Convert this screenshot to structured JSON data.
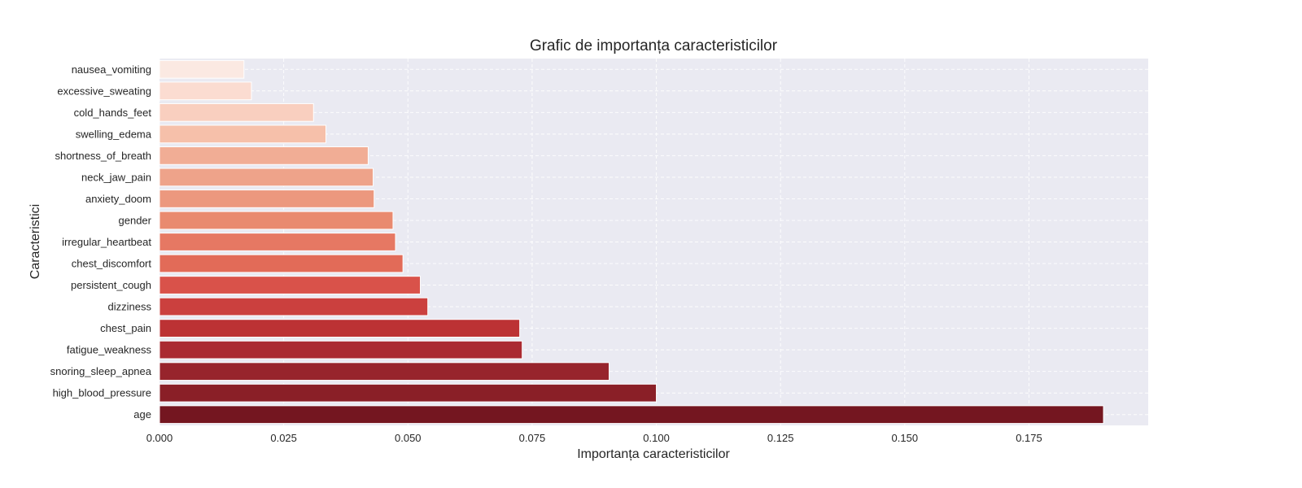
{
  "chart_data": {
    "type": "bar",
    "orientation": "horizontal",
    "title": "Grafic de importanța caracteristicilor",
    "xlabel": "Importanța caracteristicilor",
    "ylabel": "Caracteristici",
    "xlim": [
      0,
      0.199
    ],
    "xticks": [
      "0.000",
      "0.025",
      "0.050",
      "0.075",
      "0.100",
      "0.125",
      "0.150",
      "0.175"
    ],
    "grid": true,
    "colormap": "Reds",
    "categories": [
      "nausea_vomiting",
      "excessive_sweating",
      "cold_hands_feet",
      "swelling_edema",
      "shortness_of_breath",
      "neck_jaw_pain",
      "anxiety_doom",
      "gender",
      "irregular_heartbeat",
      "chest_discomfort",
      "persistent_cough",
      "dizziness",
      "chest_pain",
      "fatigue_weakness",
      "snoring_sleep_apnea",
      "high_blood_pressure",
      "age"
    ],
    "values": [
      0.017,
      0.0185,
      0.031,
      0.0335,
      0.042,
      0.043,
      0.0432,
      0.047,
      0.0475,
      0.049,
      0.0525,
      0.054,
      0.0725,
      0.073,
      0.0905,
      0.1,
      0.19
    ],
    "colors": [
      "#fbe9e2",
      "#fbdcd1",
      "#f9cfbf",
      "#f6c0aa",
      "#f1ad95",
      "#eea38a",
      "#ec987e",
      "#e98a6f",
      "#e67863",
      "#e26b58",
      "#d9524a",
      "#cb403e",
      "#bc3234",
      "#aa2a31",
      "#97242c",
      "#8a1f27",
      "#741620"
    ]
  }
}
